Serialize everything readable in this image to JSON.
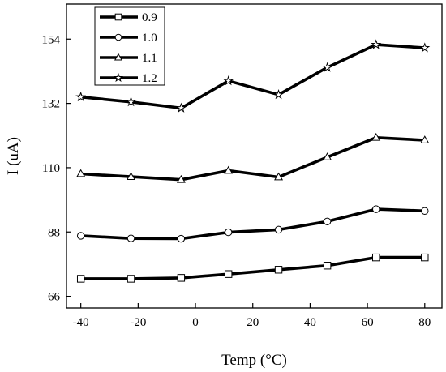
{
  "chart_data": {
    "type": "line",
    "xlabel": "Temp (°C)",
    "ylabel": "I (uA)",
    "xlim": [
      -45,
      86
    ],
    "ylim": [
      62,
      166
    ],
    "xticks": [
      "-40",
      "-20",
      "0",
      "20",
      "40",
      "60",
      "80"
    ],
    "xtick_values": [
      -40,
      -20,
      0,
      20,
      40,
      60,
      80
    ],
    "yticks": [
      "66",
      "88",
      "110",
      "132",
      "154"
    ],
    "ytick_values": [
      66,
      88,
      110,
      132,
      154
    ],
    "grid": false,
    "legend_position": "top-left",
    "line_color": "#000000",
    "series": [
      {
        "name": "0.9",
        "marker": "square",
        "x": [
          -40,
          -22.5,
          -5,
          11.5,
          29,
          46,
          63,
          80
        ],
        "y": [
          72,
          72,
          72.3,
          73.6,
          75.1,
          76.5,
          79.3,
          79.3
        ]
      },
      {
        "name": "1.0",
        "marker": "circle",
        "x": [
          -40,
          -22.5,
          -5,
          11.5,
          29,
          46,
          63,
          80
        ],
        "y": [
          86.7,
          85.8,
          85.7,
          87.9,
          88.8,
          91.6,
          95.8,
          95.2
        ]
      },
      {
        "name": "1.1",
        "marker": "triangle",
        "x": [
          -40,
          -22.5,
          -5,
          11.5,
          29,
          46,
          63,
          80
        ],
        "y": [
          107.9,
          106.9,
          105.9,
          109,
          106.8,
          113.6,
          120.3,
          119.4
        ]
      },
      {
        "name": "1.2",
        "marker": "star",
        "x": [
          -40,
          -22.5,
          -5,
          11.5,
          29,
          46,
          63,
          80
        ],
        "y": [
          134.2,
          132.5,
          130.4,
          139.7,
          135,
          144.3,
          152.1,
          151
        ]
      }
    ]
  }
}
